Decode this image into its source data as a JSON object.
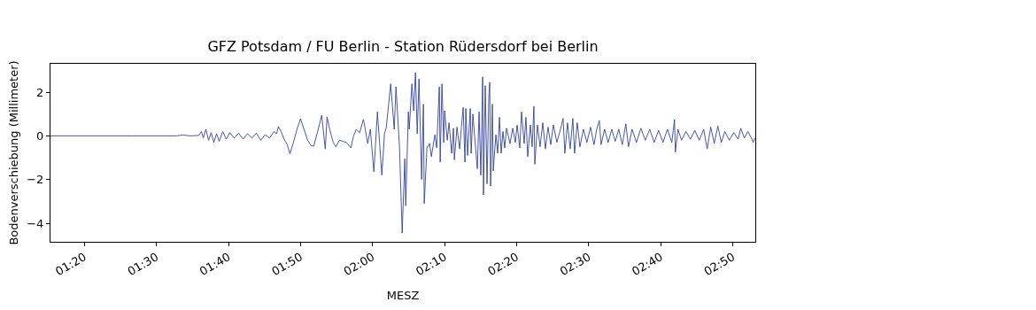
{
  "chart_data": {
    "type": "line",
    "title": "GFZ Potsdam / FU Berlin - Station Rüdersdorf bei Berlin",
    "xlabel": "MESZ",
    "ylabel": "Bodenverschiebung (Millimeter)",
    "xlim": [
      1.255,
      2.8853
    ],
    "ylim": [
      -4.85,
      3.3
    ],
    "xticks": [
      {
        "value": 1.3333,
        "label": "01:20"
      },
      {
        "value": 1.5,
        "label": "01:30"
      },
      {
        "value": 1.6667,
        "label": "01:40"
      },
      {
        "value": 1.8333,
        "label": "01:50"
      },
      {
        "value": 2.0,
        "label": "02:00"
      },
      {
        "value": 2.1667,
        "label": "02:10"
      },
      {
        "value": 2.3333,
        "label": "02:20"
      },
      {
        "value": 2.5,
        "label": "02:30"
      },
      {
        "value": 2.6667,
        "label": "02:40"
      },
      {
        "value": 2.8333,
        "label": "02:50"
      }
    ],
    "yticks": [
      -4,
      -2,
      0,
      2
    ],
    "marker": "none",
    "line_style": "solid",
    "x": [
      1.255,
      1.4448,
      1.547,
      1.5614,
      1.5777,
      1.5982,
      1.6043,
      1.6084,
      1.6145,
      1.6207,
      1.6268,
      1.6329,
      1.6391,
      1.6452,
      1.6534,
      1.6616,
      1.6697,
      1.68,
      1.6902,
      1.7004,
      1.7106,
      1.7209,
      1.7311,
      1.7413,
      1.7515,
      1.7618,
      1.772,
      1.7781,
      1.7822,
      1.7883,
      1.7965,
      1.8027,
      1.8088,
      1.817,
      1.8252,
      1.8333,
      1.8415,
      1.8497,
      1.8579,
      1.864,
      1.8742,
      1.8824,
      1.8906,
      1.8947,
      1.9008,
      1.909,
      1.9151,
      1.9233,
      1.9315,
      1.9397,
      1.9499,
      1.956,
      1.9622,
      1.9703,
      1.9785,
      1.9806,
      1.9888,
      1.9949,
      2.0031,
      2.0112,
      2.0215,
      2.0276,
      2.0317,
      2.0419,
      2.0501,
      2.0542,
      2.0624,
      2.0685,
      2.0746,
      2.0767,
      2.0828,
      2.0849,
      2.091,
      2.0951,
      2.0992,
      2.1033,
      2.1074,
      2.1135,
      2.1176,
      2.1196,
      2.1258,
      2.1319,
      2.136,
      2.1442,
      2.1483,
      2.1544,
      2.1564,
      2.1605,
      2.1646,
      2.1667,
      2.1728,
      2.1769,
      2.183,
      2.1871,
      2.1892,
      2.1953,
      2.2014,
      2.2055,
      2.2096,
      2.2137,
      2.2157,
      2.2198,
      2.226,
      2.228,
      2.2321,
      2.2362,
      2.2423,
      2.2464,
      2.2505,
      2.2546,
      2.2566,
      2.2607,
      2.2648,
      2.2689,
      2.271,
      2.273,
      2.2771,
      2.2791,
      2.2853,
      2.2894,
      2.2935,
      2.2975,
      2.3016,
      2.3057,
      2.3098,
      2.318,
      2.3241,
      2.3303,
      2.3344,
      2.3405,
      2.3446,
      2.3507,
      2.3548,
      2.3589,
      2.365,
      2.3691,
      2.3732,
      2.3753,
      2.3814,
      2.3875,
      2.3937,
      2.3998,
      2.4059,
      2.4121,
      2.4182,
      2.4264,
      2.4346,
      2.4407,
      2.4448,
      2.4509,
      2.4571,
      2.4632,
      2.4673,
      2.4734,
      2.4796,
      2.4877,
      2.4959,
      2.5041,
      2.5123,
      2.5184,
      2.5245,
      2.5286,
      2.5368,
      2.545,
      2.5532,
      2.5613,
      2.5695,
      2.5777,
      2.5859,
      2.592,
      2.6002,
      2.6104,
      2.6207,
      2.6309,
      2.6411,
      2.6513,
      2.6616,
      2.6718,
      2.682,
      2.6922,
      2.6984,
      2.7004,
      2.7065,
      2.7147,
      2.7249,
      2.7352,
      2.7454,
      2.7556,
      2.7658,
      2.774,
      2.7822,
      2.7904,
      2.7986,
      2.8067,
      2.8149,
      2.8252,
      2.8354,
      2.8456,
      2.8517,
      2.8599,
      2.8681,
      2.8763,
      2.8804,
      2.8845
    ],
    "series": [
      {
        "color": "#3343a3",
        "values": [
          0,
          0,
          0,
          0.04,
          0,
          0.02,
          0.2,
          -0.1,
          0.3,
          -0.2,
          0.15,
          -0.3,
          0.1,
          -0.25,
          0.2,
          -0.15,
          0.15,
          -0.1,
          0.12,
          -0.15,
          0.1,
          -0.1,
          0.12,
          -0.2,
          0.05,
          -0.1,
          0.2,
          0.1,
          0.43,
          0.2,
          -0.2,
          -0.4,
          -0.82,
          -0.3,
          0.3,
          0.78,
          0.3,
          -0.2,
          -0.45,
          -0.47,
          0.3,
          0.94,
          -0.6,
          0.86,
          0.3,
          -0.3,
          -0.5,
          -0.2,
          -0.25,
          -0.3,
          -0.55,
          0,
          0.3,
          0.15,
          0.75,
          0.6,
          -0.35,
          0.3,
          -1.65,
          1.1,
          -1.8,
          0.1,
          0.38,
          2.38,
          0.3,
          2.25,
          -0.55,
          -4.45,
          -1.05,
          -3.2,
          1.1,
          0.3,
          2.38,
          1.15,
          2.9,
          0.1,
          2.6,
          -2.0,
          1.45,
          -3.1,
          -0.55,
          -0.35,
          -0.95,
          0.05,
          -0.55,
          2.25,
          -1.2,
          2.38,
          -0.3,
          1.15,
          -0.2,
          0.6,
          -0.8,
          0.35,
          -1.1,
          0.4,
          -0.6,
          0.4,
          1.3,
          -1.2,
          1.25,
          -0.9,
          1.25,
          -0.8,
          1.0,
          -0.05,
          -1.5,
          1.1,
          -1.8,
          2.7,
          -2.7,
          2.3,
          -2.2,
          1.75,
          2.45,
          -2.3,
          1.45,
          -1.6,
          0.05,
          -0.8,
          0.85,
          -0.8,
          0.2,
          -0.55,
          0.35,
          -0.35,
          0.35,
          -0.3,
          0.5,
          -0.55,
          1.1,
          -0.35,
          0.85,
          -0.95,
          0.5,
          -0.5,
          1.35,
          -1.3,
          0.5,
          -0.5,
          0.6,
          -0.6,
          0.4,
          -0.4,
          0.5,
          -0.3,
          0.3,
          0.8,
          -0.8,
          0.6,
          -0.6,
          0.8,
          -0.8,
          0.6,
          -0.5,
          0.3,
          -0.3,
          0.4,
          -0.4,
          0.3,
          0.7,
          -0.4,
          0.3,
          -0.3,
          0.3,
          -0.25,
          0.3,
          -0.4,
          0.55,
          -0.5,
          0.3,
          -0.3,
          0.35,
          -0.2,
          0.3,
          -0.3,
          0.25,
          -0.3,
          0.3,
          -0.3,
          0.75,
          -0.75,
          0.3,
          -0.2,
          0.2,
          -0.15,
          0.25,
          -0.2,
          0.3,
          -0.6,
          0.4,
          -0.35,
          0.45,
          -0.3,
          0.2,
          -0.2,
          0.15,
          -0.15,
          0.35,
          -0.1,
          0.2,
          -0.1,
          -0.3,
          -0.1
        ]
      }
    ]
  }
}
